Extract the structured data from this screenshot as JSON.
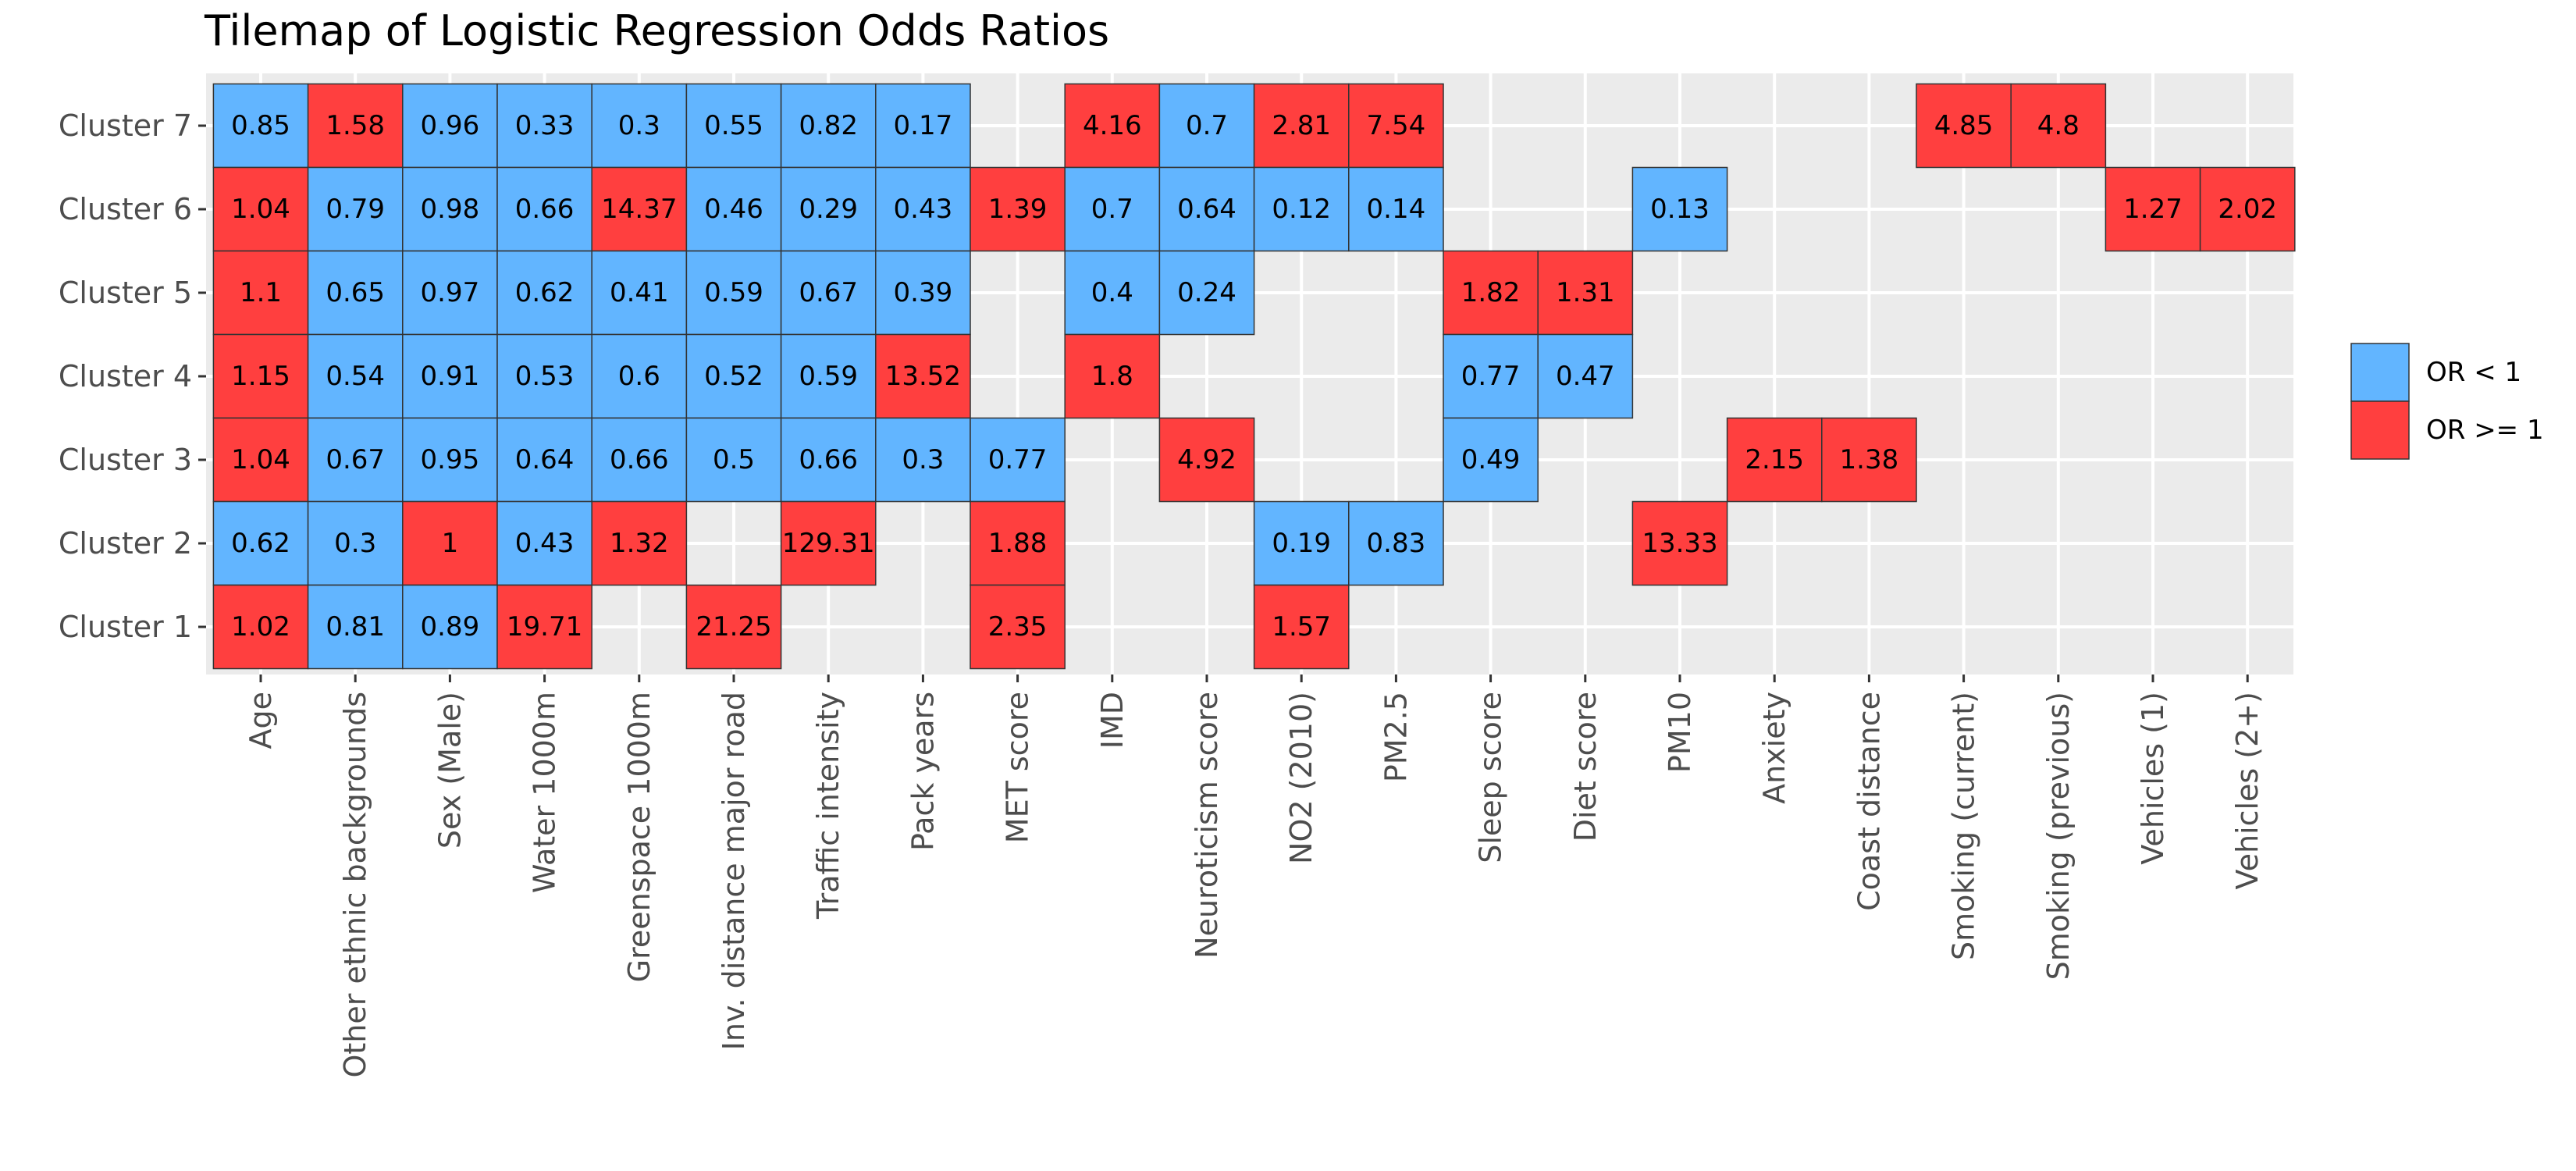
{
  "colors": {
    "below": "#62b5ff",
    "above": "#ff3f3f",
    "panel": "#ebebeb",
    "grid": "#ffffff"
  },
  "chart_data": {
    "type": "heatmap",
    "title": "Tilemap of Logistic Regression Odds Ratios",
    "x_categories": [
      "Age",
      "Other ethnic backgrounds",
      "Sex (Male)",
      "Water 1000m",
      "Greenspace 1000m",
      "Inv. distance major road",
      "Traffic intensity",
      "Pack years",
      "MET score",
      "IMD",
      "Neuroticism score",
      "NO2 (2010)",
      "PM2.5",
      "Sleep score",
      "Diet score",
      "PM10",
      "Anxiety",
      "Coast distance",
      "Smoking (current)",
      "Smoking (previous)",
      "Vehicles (1)",
      "Vehicles (2+)"
    ],
    "y_categories": [
      "Cluster 1",
      "Cluster 2",
      "Cluster 3",
      "Cluster 4",
      "Cluster 5",
      "Cluster 6",
      "Cluster 7"
    ],
    "legend": {
      "position": "right",
      "items": [
        {
          "label": "OR < 1",
          "key": "below"
        },
        {
          "label": "OR >= 1",
          "key": "above"
        }
      ]
    },
    "grid": true,
    "cells": [
      {
        "y": "Cluster 7",
        "x": "Age",
        "label": "0.85",
        "value": 0.85
      },
      {
        "y": "Cluster 7",
        "x": "Other ethnic backgrounds",
        "label": "1.58",
        "value": 1.58
      },
      {
        "y": "Cluster 7",
        "x": "Sex (Male)",
        "label": "0.96",
        "value": 0.96
      },
      {
        "y": "Cluster 7",
        "x": "Water 1000m",
        "label": "0.33",
        "value": 0.33
      },
      {
        "y": "Cluster 7",
        "x": "Greenspace 1000m",
        "label": "0.3",
        "value": 0.3
      },
      {
        "y": "Cluster 7",
        "x": "Inv. distance major road",
        "label": "0.55",
        "value": 0.55
      },
      {
        "y": "Cluster 7",
        "x": "Traffic intensity",
        "label": "0.82",
        "value": 0.82
      },
      {
        "y": "Cluster 7",
        "x": "Pack years",
        "label": "0.17",
        "value": 0.17
      },
      {
        "y": "Cluster 7",
        "x": "IMD",
        "label": "4.16",
        "value": 4.16
      },
      {
        "y": "Cluster 7",
        "x": "Neuroticism score",
        "label": "0.7",
        "value": 0.7
      },
      {
        "y": "Cluster 7",
        "x": "NO2 (2010)",
        "label": "2.81",
        "value": 2.81
      },
      {
        "y": "Cluster 7",
        "x": "PM2.5",
        "label": "7.54",
        "value": 7.54
      },
      {
        "y": "Cluster 7",
        "x": "Smoking (current)",
        "label": "4.85",
        "value": 4.85
      },
      {
        "y": "Cluster 7",
        "x": "Smoking (previous)",
        "label": "4.8",
        "value": 4.8
      },
      {
        "y": "Cluster 6",
        "x": "Age",
        "label": "1.04",
        "value": 1.04
      },
      {
        "y": "Cluster 6",
        "x": "Other ethnic backgrounds",
        "label": "0.79",
        "value": 0.79
      },
      {
        "y": "Cluster 6",
        "x": "Sex (Male)",
        "label": "0.98",
        "value": 0.98
      },
      {
        "y": "Cluster 6",
        "x": "Water 1000m",
        "label": "0.66",
        "value": 0.66
      },
      {
        "y": "Cluster 6",
        "x": "Greenspace 1000m",
        "label": "14.37",
        "value": 14.37
      },
      {
        "y": "Cluster 6",
        "x": "Inv. distance major road",
        "label": "0.46",
        "value": 0.46
      },
      {
        "y": "Cluster 6",
        "x": "Traffic intensity",
        "label": "0.29",
        "value": 0.29
      },
      {
        "y": "Cluster 6",
        "x": "Pack years",
        "label": "0.43",
        "value": 0.43
      },
      {
        "y": "Cluster 6",
        "x": "MET score",
        "label": "1.39",
        "value": 1.39
      },
      {
        "y": "Cluster 6",
        "x": "IMD",
        "label": "0.7",
        "value": 0.7
      },
      {
        "y": "Cluster 6",
        "x": "Neuroticism score",
        "label": "0.64",
        "value": 0.64
      },
      {
        "y": "Cluster 6",
        "x": "NO2 (2010)",
        "label": "0.12",
        "value": 0.12
      },
      {
        "y": "Cluster 6",
        "x": "PM2.5",
        "label": "0.14",
        "value": 0.14
      },
      {
        "y": "Cluster 6",
        "x": "PM10",
        "label": "0.13",
        "value": 0.13
      },
      {
        "y": "Cluster 6",
        "x": "Vehicles (1)",
        "label": "1.27",
        "value": 1.27
      },
      {
        "y": "Cluster 6",
        "x": "Vehicles (2+)",
        "label": "2.02",
        "value": 2.02
      },
      {
        "y": "Cluster 5",
        "x": "Age",
        "label": "1.1",
        "value": 1.1
      },
      {
        "y": "Cluster 5",
        "x": "Other ethnic backgrounds",
        "label": "0.65",
        "value": 0.65
      },
      {
        "y": "Cluster 5",
        "x": "Sex (Male)",
        "label": "0.97",
        "value": 0.97
      },
      {
        "y": "Cluster 5",
        "x": "Water 1000m",
        "label": "0.62",
        "value": 0.62
      },
      {
        "y": "Cluster 5",
        "x": "Greenspace 1000m",
        "label": "0.41",
        "value": 0.41
      },
      {
        "y": "Cluster 5",
        "x": "Inv. distance major road",
        "label": "0.59",
        "value": 0.59
      },
      {
        "y": "Cluster 5",
        "x": "Traffic intensity",
        "label": "0.67",
        "value": 0.67
      },
      {
        "y": "Cluster 5",
        "x": "Pack years",
        "label": "0.39",
        "value": 0.39
      },
      {
        "y": "Cluster 5",
        "x": "IMD",
        "label": "0.4",
        "value": 0.4
      },
      {
        "y": "Cluster 5",
        "x": "Neuroticism score",
        "label": "0.24",
        "value": 0.24
      },
      {
        "y": "Cluster 5",
        "x": "Sleep score",
        "label": "1.82",
        "value": 1.82
      },
      {
        "y": "Cluster 5",
        "x": "Diet score",
        "label": "1.31",
        "value": 1.31
      },
      {
        "y": "Cluster 4",
        "x": "Age",
        "label": "1.15",
        "value": 1.15
      },
      {
        "y": "Cluster 4",
        "x": "Other ethnic backgrounds",
        "label": "0.54",
        "value": 0.54
      },
      {
        "y": "Cluster 4",
        "x": "Sex (Male)",
        "label": "0.91",
        "value": 0.91
      },
      {
        "y": "Cluster 4",
        "x": "Water 1000m",
        "label": "0.53",
        "value": 0.53
      },
      {
        "y": "Cluster 4",
        "x": "Greenspace 1000m",
        "label": "0.6",
        "value": 0.6
      },
      {
        "y": "Cluster 4",
        "x": "Inv. distance major road",
        "label": "0.52",
        "value": 0.52
      },
      {
        "y": "Cluster 4",
        "x": "Traffic intensity",
        "label": "0.59",
        "value": 0.59
      },
      {
        "y": "Cluster 4",
        "x": "Pack years",
        "label": "13.52",
        "value": 13.52
      },
      {
        "y": "Cluster 4",
        "x": "IMD",
        "label": "1.8",
        "value": 1.8
      },
      {
        "y": "Cluster 4",
        "x": "Sleep score",
        "label": "0.77",
        "value": 0.77
      },
      {
        "y": "Cluster 4",
        "x": "Diet score",
        "label": "0.47",
        "value": 0.47
      },
      {
        "y": "Cluster 3",
        "x": "Age",
        "label": "1.04",
        "value": 1.04
      },
      {
        "y": "Cluster 3",
        "x": "Other ethnic backgrounds",
        "label": "0.67",
        "value": 0.67
      },
      {
        "y": "Cluster 3",
        "x": "Sex (Male)",
        "label": "0.95",
        "value": 0.95
      },
      {
        "y": "Cluster 3",
        "x": "Water 1000m",
        "label": "0.64",
        "value": 0.64
      },
      {
        "y": "Cluster 3",
        "x": "Greenspace 1000m",
        "label": "0.66",
        "value": 0.66
      },
      {
        "y": "Cluster 3",
        "x": "Inv. distance major road",
        "label": "0.5",
        "value": 0.5
      },
      {
        "y": "Cluster 3",
        "x": "Traffic intensity",
        "label": "0.66",
        "value": 0.66
      },
      {
        "y": "Cluster 3",
        "x": "Pack years",
        "label": "0.3",
        "value": 0.3
      },
      {
        "y": "Cluster 3",
        "x": "MET score",
        "label": "0.77",
        "value": 0.77
      },
      {
        "y": "Cluster 3",
        "x": "Neuroticism score",
        "label": "4.92",
        "value": 4.92
      },
      {
        "y": "Cluster 3",
        "x": "Sleep score",
        "label": "0.49",
        "value": 0.49
      },
      {
        "y": "Cluster 3",
        "x": "Anxiety",
        "label": "2.15",
        "value": 2.15
      },
      {
        "y": "Cluster 3",
        "x": "Coast distance",
        "label": "1.38",
        "value": 1.38
      },
      {
        "y": "Cluster 2",
        "x": "Age",
        "label": "0.62",
        "value": 0.62
      },
      {
        "y": "Cluster 2",
        "x": "Other ethnic backgrounds",
        "label": "0.3",
        "value": 0.3
      },
      {
        "y": "Cluster 2",
        "x": "Sex (Male)",
        "label": "1",
        "value": 1
      },
      {
        "y": "Cluster 2",
        "x": "Water 1000m",
        "label": "0.43",
        "value": 0.43
      },
      {
        "y": "Cluster 2",
        "x": "Greenspace 1000m",
        "label": "1.32",
        "value": 1.32
      },
      {
        "y": "Cluster 2",
        "x": "Traffic intensity",
        "label": "129.31",
        "value": 129.31
      },
      {
        "y": "Cluster 2",
        "x": "MET score",
        "label": "1.88",
        "value": 1.88
      },
      {
        "y": "Cluster 2",
        "x": "NO2 (2010)",
        "label": "0.19",
        "value": 0.19
      },
      {
        "y": "Cluster 2",
        "x": "PM2.5",
        "label": "0.83",
        "value": 0.83
      },
      {
        "y": "Cluster 2",
        "x": "PM10",
        "label": "13.33",
        "value": 13.33
      },
      {
        "y": "Cluster 1",
        "x": "Age",
        "label": "1.02",
        "value": 1.02
      },
      {
        "y": "Cluster 1",
        "x": "Other ethnic backgrounds",
        "label": "0.81",
        "value": 0.81
      },
      {
        "y": "Cluster 1",
        "x": "Sex (Male)",
        "label": "0.89",
        "value": 0.89
      },
      {
        "y": "Cluster 1",
        "x": "Water 1000m",
        "label": "19.71",
        "value": 19.71
      },
      {
        "y": "Cluster 1",
        "x": "Inv. distance major road",
        "label": "21.25",
        "value": 21.25
      },
      {
        "y": "Cluster 1",
        "x": "MET score",
        "label": "2.35",
        "value": 2.35
      },
      {
        "y": "Cluster 1",
        "x": "NO2 (2010)",
        "label": "1.57",
        "value": 1.57
      }
    ]
  }
}
